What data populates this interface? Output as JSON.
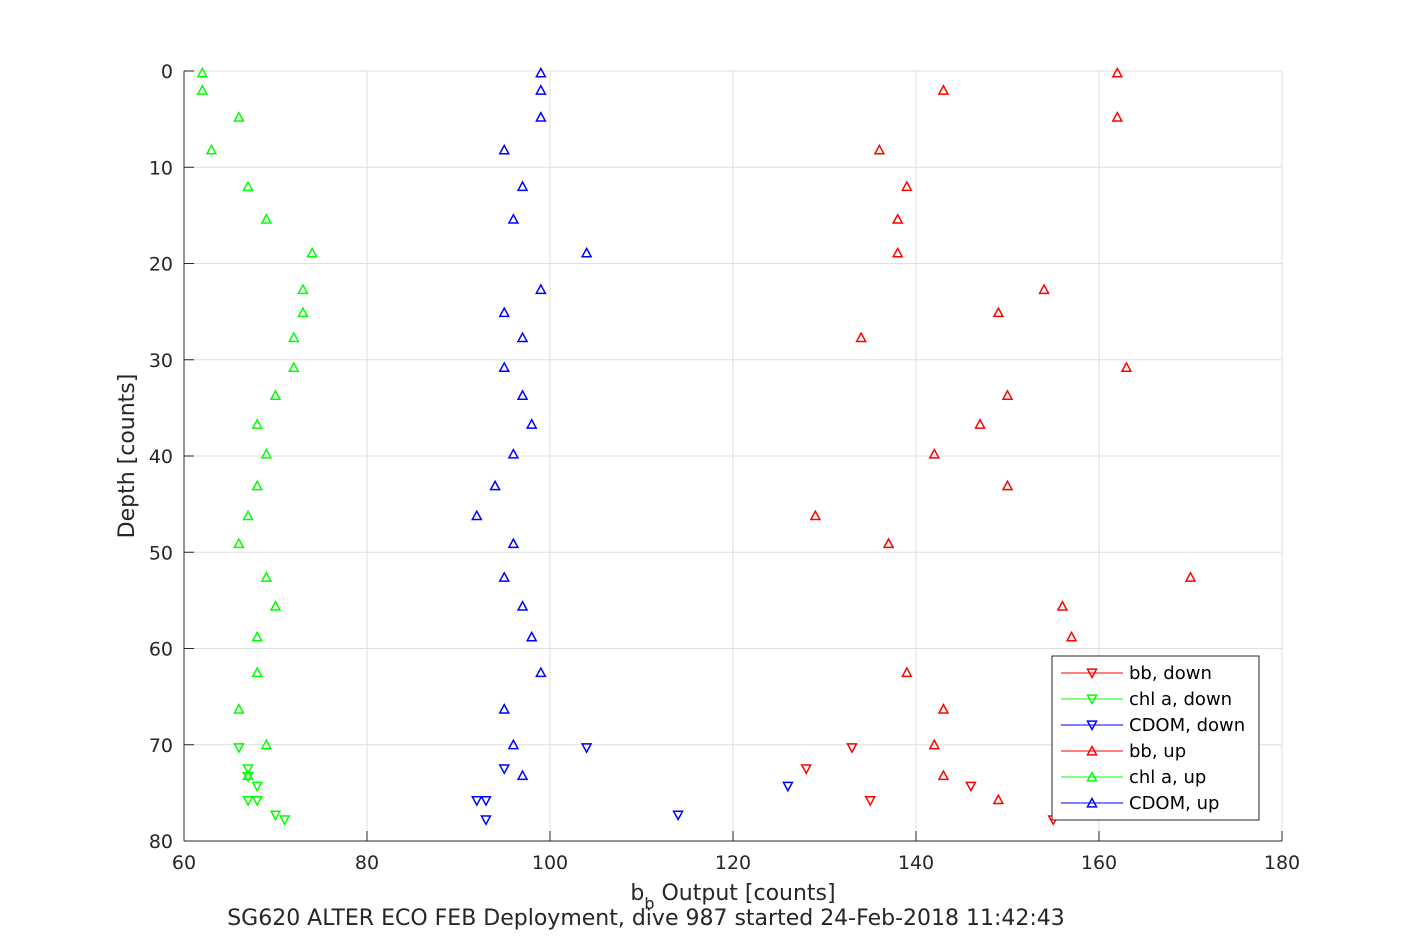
{
  "chart_data": {
    "type": "scatter",
    "title": "",
    "xlabel_main": "b",
    "xlabel_sub": "b",
    "xlabel_rest": " Output [counts]",
    "ylabel": "Depth [counts]",
    "caption": "SG620 ALTER ECO FEB Deployment, dive 987 started 24-Feb-2018 11:42:43",
    "xlim": [
      60,
      180
    ],
    "ylim": [
      0,
      80
    ],
    "y_reversed": true,
    "grid": true,
    "legend_position": "bottom-right",
    "xticks": [
      "60",
      "80",
      "100",
      "120",
      "140",
      "160",
      "180"
    ],
    "yticks": [
      "0",
      "10",
      "20",
      "30",
      "40",
      "50",
      "60",
      "70",
      "80"
    ],
    "colors": {
      "red": "#ff0000",
      "green": "#00ff00",
      "blue": "#0000ff"
    },
    "series": [
      {
        "name": "bb, down",
        "color": "#ff0000",
        "marker": "triangle-down",
        "points": [
          [
            133,
            70.3
          ],
          [
            128,
            72.5
          ],
          [
            146,
            74.3
          ],
          [
            135,
            75.8
          ],
          [
            155,
            77.8
          ]
        ]
      },
      {
        "name": "chl a, down",
        "color": "#00ff00",
        "marker": "triangle-down",
        "points": [
          [
            66,
            70.3
          ],
          [
            67,
            72.5
          ],
          [
            67,
            73.3
          ],
          [
            68,
            74.3
          ],
          [
            67,
            75.8
          ],
          [
            68,
            75.8
          ],
          [
            70,
            77.3
          ],
          [
            71,
            77.8
          ]
        ]
      },
      {
        "name": "CDOM, down",
        "color": "#0000ff",
        "marker": "triangle-down",
        "points": [
          [
            104,
            70.3
          ],
          [
            95,
            72.5
          ],
          [
            126,
            74.3
          ],
          [
            92,
            75.8
          ],
          [
            93,
            75.8
          ],
          [
            114,
            77.3
          ],
          [
            93,
            77.8
          ]
        ]
      },
      {
        "name": "bb, up",
        "color": "#ff0000",
        "marker": "triangle-up",
        "points": [
          [
            162,
            0.2
          ],
          [
            143,
            2
          ],
          [
            162,
            4.8
          ],
          [
            136,
            8.2
          ],
          [
            139,
            12
          ],
          [
            138,
            15.4
          ],
          [
            138,
            18.9
          ],
          [
            154,
            22.7
          ],
          [
            149,
            25.1
          ],
          [
            134,
            27.7
          ],
          [
            163,
            30.8
          ],
          [
            150,
            33.7
          ],
          [
            147,
            36.7
          ],
          [
            142,
            39.8
          ],
          [
            150,
            43.1
          ],
          [
            129,
            46.2
          ],
          [
            137,
            49.1
          ],
          [
            170,
            52.6
          ],
          [
            156,
            55.6
          ],
          [
            157,
            58.8
          ],
          [
            139,
            62.5
          ],
          [
            143,
            66.3
          ],
          [
            142,
            70
          ],
          [
            143,
            73.2
          ],
          [
            149,
            75.7
          ]
        ]
      },
      {
        "name": "chl a, up",
        "color": "#00ff00",
        "marker": "triangle-up",
        "points": [
          [
            62,
            0.2
          ],
          [
            62,
            2
          ],
          [
            66,
            4.8
          ],
          [
            63,
            8.2
          ],
          [
            67,
            12
          ],
          [
            69,
            15.4
          ],
          [
            74,
            18.9
          ],
          [
            73,
            22.7
          ],
          [
            73,
            25.1
          ],
          [
            72,
            27.7
          ],
          [
            72,
            30.8
          ],
          [
            70,
            33.7
          ],
          [
            68,
            36.7
          ],
          [
            69,
            39.8
          ],
          [
            68,
            43.1
          ],
          [
            67,
            46.2
          ],
          [
            66,
            49.1
          ],
          [
            69,
            52.6
          ],
          [
            70,
            55.6
          ],
          [
            68,
            58.8
          ],
          [
            68,
            62.5
          ],
          [
            66,
            66.3
          ],
          [
            69,
            70
          ],
          [
            67,
            73.2
          ]
        ]
      },
      {
        "name": "CDOM, up",
        "color": "#0000ff",
        "marker": "triangle-up",
        "points": [
          [
            99,
            0.2
          ],
          [
            99,
            2
          ],
          [
            99,
            4.8
          ],
          [
            95,
            8.2
          ],
          [
            97,
            12
          ],
          [
            96,
            15.4
          ],
          [
            104,
            18.9
          ],
          [
            99,
            22.7
          ],
          [
            95,
            25.1
          ],
          [
            97,
            27.7
          ],
          [
            95,
            30.8
          ],
          [
            97,
            33.7
          ],
          [
            98,
            36.7
          ],
          [
            96,
            39.8
          ],
          [
            94,
            43.1
          ],
          [
            92,
            46.2
          ],
          [
            96,
            49.1
          ],
          [
            95,
            52.6
          ],
          [
            97,
            55.6
          ],
          [
            98,
            58.8
          ],
          [
            99,
            62.5
          ],
          [
            95,
            66.3
          ],
          [
            96,
            70
          ],
          [
            97,
            73.2
          ]
        ]
      }
    ]
  }
}
